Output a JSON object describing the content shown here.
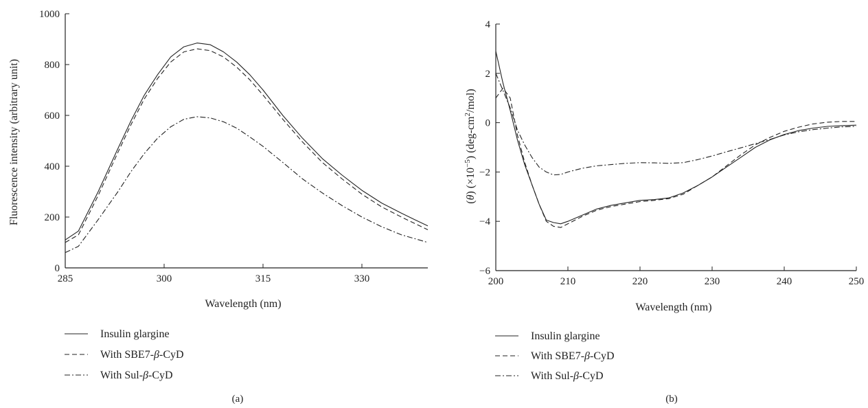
{
  "chart_data": [
    {
      "type": "line",
      "panel_label": "(a)",
      "xlabel": "Wavelength (nm)",
      "ylabel": "Fluorescence intensity (arbitrary unit)",
      "xlim": [
        285,
        340
      ],
      "ylim": [
        0,
        1000
      ],
      "xticks": [
        285,
        300,
        315,
        330
      ],
      "yticks": [
        0,
        200,
        400,
        600,
        800,
        1000
      ],
      "grid": false,
      "legend_position": "bottom",
      "series": [
        {
          "name": "Insulin glargine",
          "dash": "solid",
          "x": [
            285,
            287,
            290,
            293,
            295,
            297,
            299,
            301,
            303,
            305,
            307,
            309,
            311,
            313,
            315,
            318,
            321,
            324,
            327,
            330,
            333,
            336,
            338,
            340
          ],
          "y": [
            110,
            145,
            300,
            470,
            580,
            680,
            760,
            830,
            870,
            885,
            878,
            850,
            810,
            760,
            700,
            600,
            510,
            430,
            365,
            305,
            255,
            215,
            190,
            165
          ]
        },
        {
          "name": "With SBE7-β-CyD",
          "dash": "dashed",
          "x": [
            285,
            287,
            290,
            293,
            295,
            297,
            299,
            301,
            303,
            305,
            307,
            309,
            311,
            313,
            315,
            318,
            321,
            324,
            327,
            330,
            333,
            336,
            338,
            340
          ],
          "y": [
            100,
            130,
            285,
            455,
            565,
            665,
            745,
            810,
            850,
            862,
            855,
            830,
            790,
            740,
            680,
            585,
            495,
            415,
            350,
            290,
            240,
            200,
            175,
            150
          ]
        },
        {
          "name": "With Sul-β-CyD",
          "dash": "dashdot",
          "x": [
            285,
            287,
            290,
            293,
            295,
            297,
            299,
            301,
            303,
            305,
            307,
            309,
            311,
            313,
            315,
            318,
            321,
            324,
            327,
            330,
            333,
            336,
            338,
            340
          ],
          "y": [
            60,
            85,
            190,
            300,
            380,
            450,
            510,
            555,
            585,
            595,
            590,
            575,
            550,
            515,
            478,
            415,
            350,
            295,
            245,
            200,
            162,
            130,
            115,
            100
          ]
        }
      ]
    },
    {
      "type": "line",
      "panel_label": "(b)",
      "xlabel": "Wavelength (nm)",
      "ylabel_parts": [
        "(",
        "θ",
        ") (×10",
        "−5",
        ") (deg-cm",
        "2",
        "/mol)"
      ],
      "xlim": [
        200,
        250
      ],
      "ylim": [
        -6,
        4
      ],
      "xticks": [
        200,
        210,
        220,
        230,
        240,
        250
      ],
      "yticks": [
        -6,
        -4,
        -2,
        0,
        2,
        4
      ],
      "ytick_labels": [
        "−6",
        "−4",
        "−2",
        "0",
        "2",
        "4"
      ],
      "grid": false,
      "legend_position": "bottom",
      "series": [
        {
          "name": "Insulin glargine",
          "dash": "solid",
          "x": [
            200,
            201,
            202,
            203,
            204,
            205,
            206,
            207,
            208,
            209,
            210,
            212,
            214,
            216,
            218,
            220,
            222,
            224,
            226,
            228,
            230,
            232,
            234,
            236,
            238,
            240,
            242,
            244,
            246,
            248,
            250
          ],
          "y": [
            2.9,
            1.6,
            0.5,
            -0.7,
            -1.7,
            -2.5,
            -3.3,
            -3.95,
            -4.05,
            -4.1,
            -4.0,
            -3.75,
            -3.5,
            -3.35,
            -3.25,
            -3.15,
            -3.12,
            -3.05,
            -2.85,
            -2.55,
            -2.2,
            -1.8,
            -1.4,
            -1.0,
            -0.7,
            -0.48,
            -0.32,
            -0.22,
            -0.15,
            -0.12,
            -0.1
          ]
        },
        {
          "name": "With SBE7-β-CyD",
          "dash": "dashed",
          "x": [
            200,
            201,
            202,
            203,
            204,
            205,
            206,
            207,
            208,
            209,
            210,
            212,
            214,
            216,
            218,
            220,
            222,
            224,
            226,
            228,
            230,
            232,
            234,
            236,
            238,
            240,
            242,
            244,
            246,
            248,
            250
          ],
          "y": [
            1.0,
            1.4,
            1.0,
            -0.5,
            -1.6,
            -2.5,
            -3.3,
            -4.0,
            -4.2,
            -4.25,
            -4.1,
            -3.8,
            -3.55,
            -3.4,
            -3.3,
            -3.2,
            -3.15,
            -3.08,
            -2.9,
            -2.55,
            -2.2,
            -1.75,
            -1.3,
            -0.9,
            -0.6,
            -0.35,
            -0.18,
            -0.05,
            0.02,
            0.05,
            0.05
          ]
        },
        {
          "name": "With Sul-β-CyD",
          "dash": "dashdot",
          "x": [
            200,
            201,
            202,
            203,
            204,
            205,
            206,
            207,
            208,
            209,
            210,
            212,
            214,
            216,
            218,
            220,
            222,
            224,
            226,
            228,
            230,
            232,
            234,
            236,
            238,
            240,
            242,
            244,
            246,
            248,
            250
          ],
          "y": [
            2.0,
            1.3,
            0.6,
            -0.3,
            -0.9,
            -1.4,
            -1.8,
            -2.0,
            -2.12,
            -2.1,
            -2.0,
            -1.85,
            -1.75,
            -1.7,
            -1.65,
            -1.62,
            -1.63,
            -1.65,
            -1.62,
            -1.5,
            -1.35,
            -1.18,
            -1.02,
            -0.85,
            -0.68,
            -0.5,
            -0.37,
            -0.28,
            -0.22,
            -0.17,
            -0.15
          ]
        }
      ]
    }
  ]
}
